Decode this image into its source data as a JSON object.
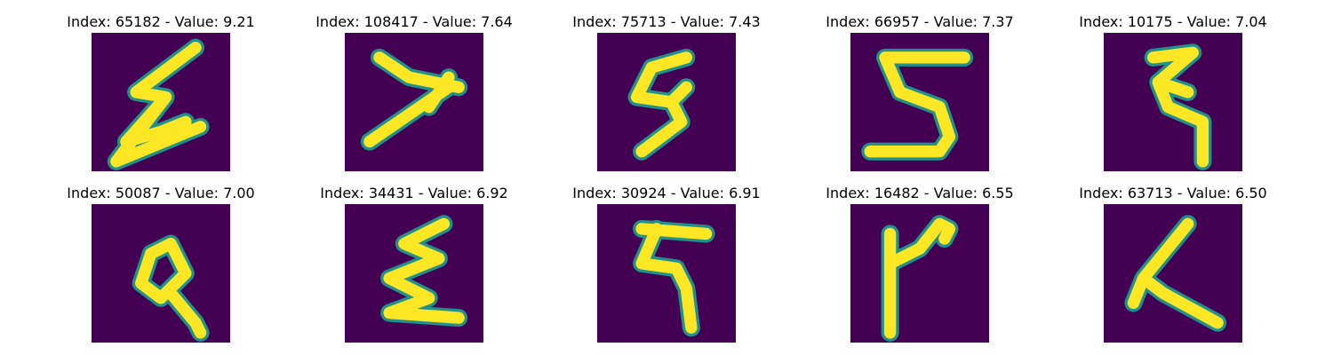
{
  "figure": {
    "background_color": "#440154",
    "stroke_color": "#fde725",
    "edge_color": "#21918c",
    "panels": [
      {
        "title": "Index: 65182 - Value: 9.21",
        "index": 65182,
        "value": 9.21
      },
      {
        "title": "Index: 108417 - Value: 7.64",
        "index": 108417,
        "value": 7.64
      },
      {
        "title": "Index: 75713 - Value: 7.43",
        "index": 75713,
        "value": 7.43
      },
      {
        "title": "Index: 66957 - Value: 7.37",
        "index": 66957,
        "value": 7.37
      },
      {
        "title": "Index: 10175 - Value: 7.04",
        "index": 10175,
        "value": 7.04
      },
      {
        "title": "Index: 50087 - Value: 7.00",
        "index": 50087,
        "value": 7.0
      },
      {
        "title": "Index: 34431 - Value: 6.92",
        "index": 34431,
        "value": 6.92
      },
      {
        "title": "Index: 30924 - Value: 6.91",
        "index": 30924,
        "value": 6.91
      },
      {
        "title": "Index: 16482 - Value: 6.55",
        "index": 16482,
        "value": 6.55
      },
      {
        "title": "Index: 63713 - Value: 6.50",
        "index": 63713,
        "value": 6.5
      }
    ]
  }
}
